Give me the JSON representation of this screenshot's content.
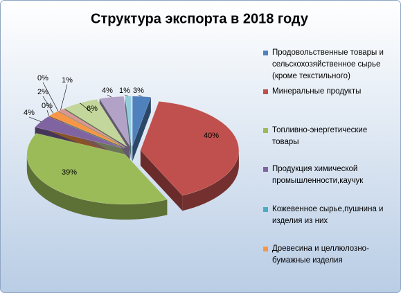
{
  "chart_data": {
    "type": "pie3d",
    "title": "Структура экспорта в 2018 году",
    "categories": [
      "Продовольственные  товары и сельскохозяйственное сырье (кроме текстильного)",
      "Минеральные продукты",
      "Топливно-энергетические товары",
      "Продукция  химической промышленности,каучук",
      "Кожевенное  сырье,пушнина и изделия из них",
      "Древесина  и целлюлозно-бумажные изделия",
      null,
      null,
      null,
      null,
      null
    ],
    "values": [
      3,
      40,
      39,
      4,
      0,
      2,
      0,
      1,
      6,
      4,
      1
    ],
    "value_labels": [
      "3%",
      "40%",
      "39%",
      "4%",
      "0%",
      "2%",
      "0%",
      "1%",
      "6%",
      "4%",
      "1%"
    ],
    "colors": [
      "#4F81BD",
      "#C0504D",
      "#9BBB59",
      "#8064A2",
      "#4BACC6",
      "#F79646",
      "#95B3D7",
      "#D99694",
      "#C3D69B",
      "#B3A2C7",
      "#93CDDD"
    ],
    "legend": "right"
  }
}
